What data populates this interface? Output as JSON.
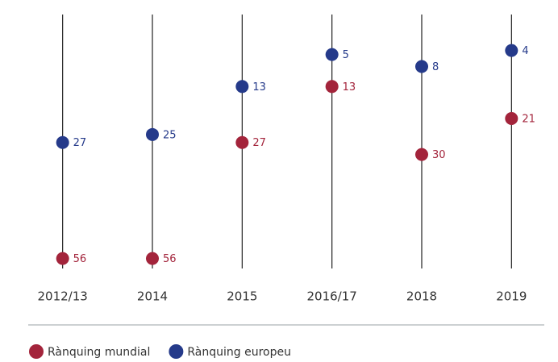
{
  "chart_data": {
    "type": "dot",
    "categories": [
      "2012/13",
      "2014",
      "2015",
      "2016/17",
      "2018",
      "2019"
    ],
    "series": [
      {
        "name": "Rànquing mundial",
        "color": "#a3243b",
        "values": [
          56,
          56,
          27,
          13,
          30,
          21
        ]
      },
      {
        "name": "Rànquing europeu",
        "color": "#253a8a",
        "values": [
          27,
          25,
          13,
          5,
          8,
          4
        ]
      }
    ],
    "ylim": [
      58.5,
      -5
    ]
  }
}
